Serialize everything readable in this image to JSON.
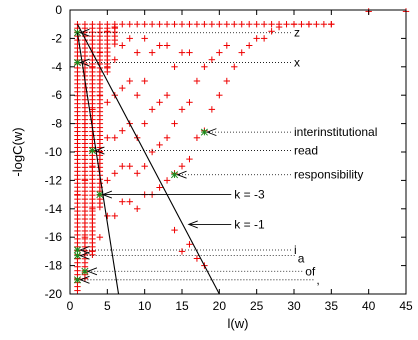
{
  "chart_data": {
    "type": "scatter",
    "title": "",
    "xlabel": "l(w)",
    "ylabel": "-logC(w)",
    "xlim": [
      0,
      45
    ],
    "ylim": [
      -20,
      0
    ],
    "x_ticks": [
      0,
      5,
      10,
      15,
      20,
      25,
      30,
      35,
      40,
      45
    ],
    "y_ticks": [
      0,
      -2,
      -4,
      -6,
      -8,
      -10,
      -12,
      -14,
      -16,
      -18,
      -20
    ],
    "x_tick_labels": [
      "0",
      "5",
      "10",
      "15",
      "20",
      "25",
      "30",
      "35",
      "40",
      "45"
    ],
    "y_tick_labels": [
      "0",
      "-2",
      "-4",
      "-6",
      "-8",
      "-10",
      "-12",
      "-14",
      "-16",
      "-18",
      "-20"
    ],
    "grid": false,
    "legend": "none",
    "colors": {
      "points": "#ee0000",
      "highlight": "#1a8a1a",
      "lines": "#000000"
    },
    "series": [
      {
        "marker": "+",
        "color": "#ee0000",
        "envelope": [
          [
            1,
            -20
          ],
          [
            2,
            -19
          ],
          [
            3,
            -17.5
          ],
          [
            4,
            -14
          ],
          [
            5,
            -4.5
          ],
          [
            6,
            -2.5
          ],
          [
            7,
            -1.2
          ],
          [
            8,
            -1
          ],
          [
            35,
            -1
          ],
          [
            40,
            -0.1
          ]
        ],
        "x": [
          1,
          1,
          1,
          2,
          2,
          2,
          2,
          3,
          3,
          3,
          3,
          3,
          4,
          4,
          4,
          4,
          4,
          5,
          5,
          5,
          5,
          5,
          5,
          6,
          6,
          6,
          6,
          6,
          6,
          7,
          7,
          7,
          7,
          7,
          8,
          8,
          8,
          8,
          8,
          9,
          9,
          9,
          9,
          9,
          10,
          10,
          10,
          10,
          10,
          11,
          11,
          11,
          11,
          12,
          12,
          12,
          12,
          13,
          13,
          13,
          13,
          14,
          14,
          14,
          15,
          15,
          15,
          16,
          16,
          16,
          17,
          17,
          18,
          18,
          19,
          19,
          20,
          20,
          21,
          21,
          22,
          23,
          24,
          25,
          26,
          27,
          28,
          30,
          32,
          35,
          40,
          45,
          14,
          15,
          16,
          17,
          18
        ],
        "y": [
          -19,
          -17.5,
          -13,
          -18.5,
          -16,
          -12,
          -8,
          -17,
          -14,
          -11,
          -7,
          -4,
          -16,
          -13,
          -10,
          -6,
          -3,
          -14.5,
          -12,
          -9,
          -6.5,
          -4,
          -1.5,
          -14.5,
          -11.5,
          -9,
          -6,
          -3.5,
          -1.2,
          -13.5,
          -11,
          -8.5,
          -5.5,
          -2.5,
          -13.5,
          -11,
          -8,
          -5,
          -2,
          -14,
          -11.5,
          -9,
          -6,
          -3,
          -13,
          -11,
          -8,
          -5,
          -2,
          -13,
          -10,
          -7,
          -3,
          -12.5,
          -9.5,
          -6.5,
          -2.5,
          -12,
          -9,
          -6,
          -2.5,
          -11.5,
          -8,
          -4,
          -11,
          -7,
          -3,
          -10.5,
          -6.5,
          -3,
          -9,
          -5,
          -8.5,
          -4,
          -7,
          -3.5,
          -6,
          -3,
          -5,
          -2.5,
          -4,
          -3,
          -2.5,
          -2,
          -2,
          -1.5,
          -1.2,
          -1,
          -1,
          -1,
          -0.1,
          -0.1,
          -15.5,
          -17,
          -16.5,
          -17.5,
          -18
        ]
      },
      {
        "marker": "*",
        "color": "#1a8a1a",
        "x": [
          1,
          1,
          3,
          4,
          14,
          18,
          1,
          1,
          2,
          1
        ],
        "y": [
          -1.6,
          -3.7,
          -9.9,
          -13.0,
          -11.6,
          -8.6,
          -16.9,
          -17.3,
          -18.4,
          -19.0
        ]
      }
    ],
    "lines": [
      {
        "label": "k = -1",
        "x": [
          1,
          20
        ],
        "y": [
          -1,
          -20
        ]
      },
      {
        "label": "k = -3",
        "x": [
          1,
          6.5
        ],
        "y": [
          -1.6,
          -20
        ]
      }
    ],
    "annotations": [
      {
        "text": "z",
        "x": 30,
        "y": -1.6,
        "ax": 1,
        "ay": -1.6
      },
      {
        "text": "x",
        "x": 30,
        "y": -3.7,
        "ax": 1,
        "ay": -3.7
      },
      {
        "text": "interinstitutional",
        "x": 30,
        "y": -8.6,
        "ax": 18,
        "ay": -8.6
      },
      {
        "text": "read",
        "x": 30,
        "y": -9.9,
        "ax": 3,
        "ay": -9.9
      },
      {
        "text": "responsibility",
        "x": 30,
        "y": -11.6,
        "ax": 14,
        "ay": -11.6
      },
      {
        "text": "k = -3",
        "x": 22,
        "y": -13.0,
        "ax": 4,
        "ay": -13.0,
        "solid": true
      },
      {
        "text": "k = -1",
        "x": 22,
        "y": -15.1,
        "ax": 15.5,
        "ay": -15.1,
        "solid": true
      },
      {
        "text": "i",
        "x": 30,
        "y": -16.9,
        "ax": 1,
        "ay": -16.9
      },
      {
        "text": "a",
        "x": 30.5,
        "y": -17.5,
        "ax": 1,
        "ay": -17.3
      },
      {
        "text": "of",
        "x": 31.5,
        "y": -18.4,
        "ax": 2,
        "ay": -18.4
      },
      {
        "text": ",",
        "x": 33,
        "y": -19.0,
        "ax": 1,
        "ay": -19.0
      }
    ]
  }
}
